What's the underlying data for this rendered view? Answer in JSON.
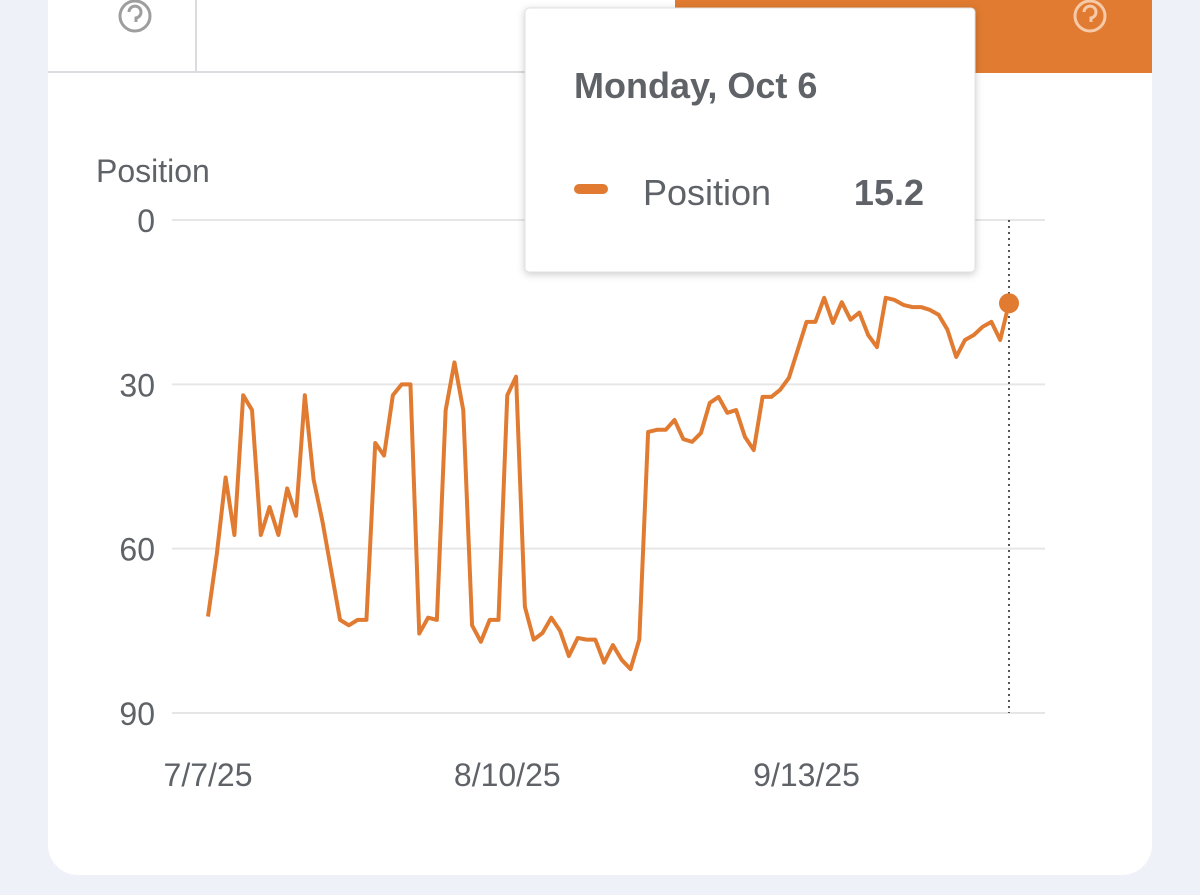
{
  "chart_data": {
    "type": "line",
    "ylabel": "Position",
    "tooltip_title": "Monday, Oct 6",
    "x": [
      "7/7/25",
      "7/8/25",
      "7/9/25",
      "7/10/25",
      "7/11/25",
      "7/12/25",
      "7/13/25",
      "7/14/25",
      "7/15/25",
      "7/16/25",
      "7/17/25",
      "7/18/25",
      "7/19/25",
      "7/20/25",
      "7/21/25",
      "7/22/25",
      "7/23/25",
      "7/24/25",
      "7/25/25",
      "7/26/25",
      "7/27/25",
      "7/28/25",
      "7/29/25",
      "7/30/25",
      "7/31/25",
      "8/1/25",
      "8/2/25",
      "8/3/25",
      "8/4/25",
      "8/5/25",
      "8/6/25",
      "8/7/25",
      "8/8/25",
      "8/9/25",
      "8/10/25",
      "8/11/25",
      "8/12/25",
      "8/13/25",
      "8/14/25",
      "8/15/25",
      "8/16/25",
      "8/17/25",
      "8/18/25",
      "8/19/25",
      "8/20/25",
      "8/21/25",
      "8/22/25",
      "8/23/25",
      "8/24/25",
      "8/25/25",
      "8/26/25",
      "8/27/25",
      "8/28/25",
      "8/29/25",
      "8/30/25",
      "8/31/25",
      "9/1/25",
      "9/2/25",
      "9/3/25",
      "9/4/25",
      "9/5/25",
      "9/6/25",
      "9/7/25",
      "9/8/25",
      "9/9/25",
      "9/10/25",
      "9/11/25",
      "9/12/25",
      "9/13/25",
      "9/14/25",
      "9/15/25",
      "9/16/25",
      "9/17/25",
      "9/18/25",
      "9/19/25",
      "9/20/25",
      "9/21/25",
      "9/22/25",
      "9/23/25",
      "9/24/25",
      "9/25/25",
      "9/26/25",
      "9/27/25",
      "9/28/25",
      "9/29/25",
      "9/30/25",
      "10/1/25",
      "10/2/25",
      "10/3/25",
      "10/4/25",
      "10/5/25",
      "10/6/25"
    ],
    "series": [
      {
        "name": "Position",
        "color": "#e07b31",
        "values": [
          72.4,
          61,
          47,
          57.5,
          32,
          34.7,
          57.5,
          52.4,
          57.5,
          49,
          54,
          32,
          47.4,
          55,
          64,
          73,
          74,
          73,
          73,
          40.7,
          43,
          32,
          30,
          30,
          75.5,
          72.6,
          73,
          34.7,
          26,
          34.7,
          74,
          77,
          73,
          73,
          32,
          28.6,
          70.6,
          76.6,
          75.4,
          72.6,
          75,
          79.6,
          76.3,
          76.6,
          76.6,
          80.8,
          77.6,
          80.3,
          82,
          76.6,
          38.7,
          38.3,
          38.3,
          36.5,
          40,
          40.5,
          38.9,
          33.4,
          32.3,
          35.2,
          34.7,
          39.6,
          42,
          32.3,
          32.3,
          31,
          28.8,
          23.7,
          18.6,
          18.6,
          14.2,
          18.8,
          15,
          18.2,
          16.9,
          21,
          23.2,
          14.2,
          14.6,
          15.5,
          15.9,
          15.9,
          16.4,
          17.3,
          20,
          25,
          21.9,
          21,
          19.5,
          18.6,
          21.9,
          15.2
        ]
      }
    ],
    "ylim": [
      0,
      90
    ],
    "yticks": [
      0,
      30,
      60,
      90
    ],
    "y_inverted": true,
    "grid": true,
    "xticks": [
      "7/7/25",
      "8/10/25",
      "9/13/25"
    ]
  }
}
